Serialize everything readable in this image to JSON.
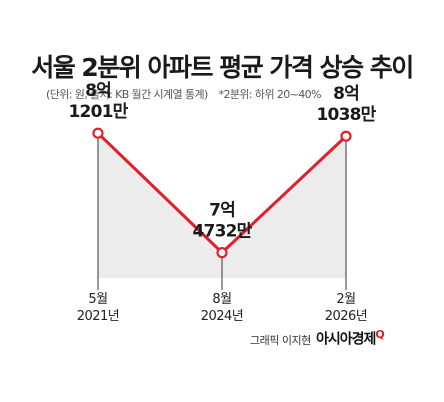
{
  "header": {
    "title": "서울 2분위 아파트 평균 가격 상승 추이",
    "source_note": "(단위: 원, 출처: KB 월간 시계열 통계)",
    "range_note": "*2분위: 하위 20~40%"
  },
  "chart_data": {
    "type": "line",
    "title": "서울 2분위 아파트 평균 가격 상승 추이",
    "categories": [
      "5월 2021년",
      "8월 2024년",
      "2월 2026년"
    ],
    "x_month_labels": [
      "5월",
      "8월",
      "2월"
    ],
    "x_year_labels": [
      "2021년",
      "2024년",
      "2026년"
    ],
    "values": [
      812010000,
      747320000,
      810380000
    ],
    "label_top": [
      "8억",
      "7억",
      "8억"
    ],
    "label_bottom": [
      "1201만",
      "4732만",
      "1038만"
    ],
    "unit": "원",
    "line_color": "#e0202a",
    "fill_color": "#ececec"
  },
  "footer": {
    "credit": "그래픽 이지현",
    "brand": "아시아경제",
    "brand_mark": "Q"
  }
}
